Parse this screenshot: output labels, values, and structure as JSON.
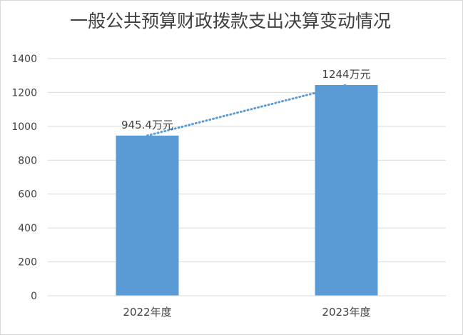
{
  "chart_data": {
    "type": "bar",
    "title": "一般公共预算财政拨款支出决算变动情况",
    "categories": [
      "2022年度",
      "2023年度"
    ],
    "values": [
      945.4,
      1244
    ],
    "data_labels": [
      "945.4万元",
      "1244万元"
    ],
    "ylim": [
      0,
      1400
    ],
    "yticks": [
      0,
      200,
      400,
      600,
      800,
      1000,
      1200,
      1400
    ],
    "grid": true,
    "trendline": "linear",
    "colors": {
      "bar": "#5b9bd5",
      "trendline": "#5b9bd5",
      "grid": "#d9d9d9"
    }
  }
}
